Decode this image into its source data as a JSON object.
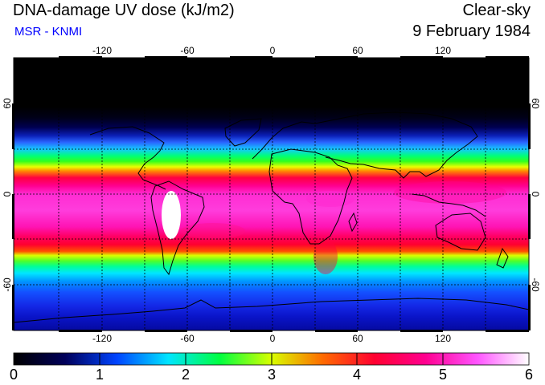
{
  "header": {
    "title": "DNA-damage UV dose (kJ/m2)",
    "source": "MSR - KNMI",
    "condition": "Clear-sky",
    "date": "9 February 1984"
  },
  "map": {
    "lon_ticks": [
      "-120",
      "-60",
      "0",
      "60",
      "120"
    ],
    "lat_ticks": [
      "60",
      "0",
      "-60"
    ],
    "lat_ticks_right": [
      "60",
      "0",
      "-60"
    ]
  },
  "colorbar": {
    "labels": [
      "0",
      "1",
      "2",
      "3",
      "4",
      "5",
      "6"
    ],
    "stops": [
      "#000000",
      "#00005a",
      "#0044ff",
      "#00e5ff",
      "#00ff40",
      "#d8ff00",
      "#ff6a00",
      "#ff0030",
      "#ff0090",
      "#ff55ff",
      "#ffffff"
    ]
  },
  "colors": {
    "subtitle": "#0000ff"
  }
}
